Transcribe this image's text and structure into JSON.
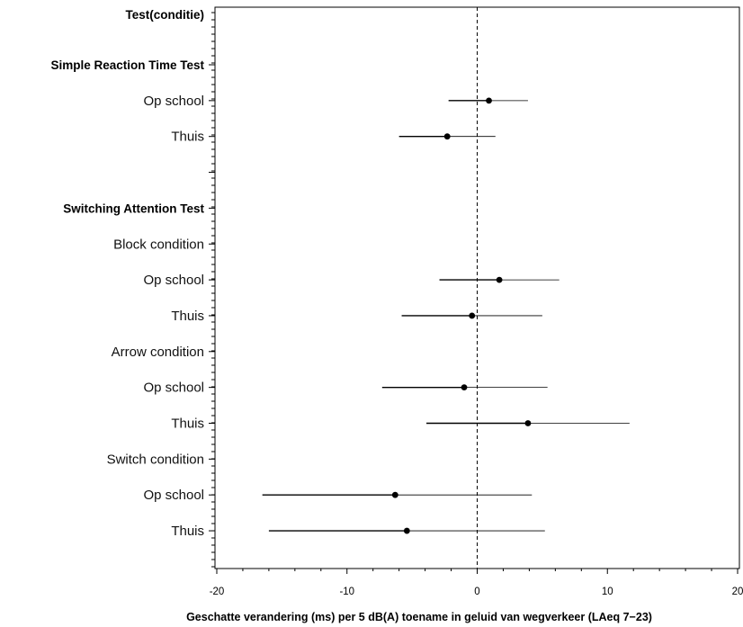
{
  "chart_data": {
    "type": "forest",
    "xlabel": "Geschatte verandering (ms) per 5 dB(A) toename in geluid van wegverkeer (LAeq 7−23)",
    "column_header": "Test(conditie)",
    "xlim": [
      -20,
      20
    ],
    "x_ticks": [
      -20,
      -10,
      0,
      10,
      20
    ],
    "x_tick_labels": [
      "-20",
      "-10",
      "0",
      "10",
      "20"
    ],
    "reference_line": 0,
    "rows": [
      {
        "label": "Simple Reaction Time Test",
        "bold": true
      },
      {
        "label": "Op school",
        "estimate": 0.9,
        "lower": -2.2,
        "upper": 3.9
      },
      {
        "label": "Thuis",
        "estimate": -2.3,
        "lower": -6.0,
        "upper": 1.4
      },
      {
        "label": "",
        "spacer": true
      },
      {
        "label": "Switching Attention Test",
        "bold": true
      },
      {
        "label": "Block condition"
      },
      {
        "label": "Op school",
        "estimate": 1.7,
        "lower": -2.9,
        "upper": 6.3
      },
      {
        "label": "Thuis",
        "estimate": -0.4,
        "lower": -5.8,
        "upper": 5.0
      },
      {
        "label": "Arrow condition"
      },
      {
        "label": "Op school",
        "estimate": -1.0,
        "lower": -7.3,
        "upper": 5.4
      },
      {
        "label": "Thuis",
        "estimate": 3.9,
        "lower": -3.9,
        "upper": 11.7
      },
      {
        "label": "Switch condition"
      },
      {
        "label": "Op school",
        "estimate": -6.3,
        "lower": -16.5,
        "upper": 4.2
      },
      {
        "label": "Thuis",
        "estimate": -5.4,
        "lower": -16.0,
        "upper": 5.2
      }
    ]
  }
}
